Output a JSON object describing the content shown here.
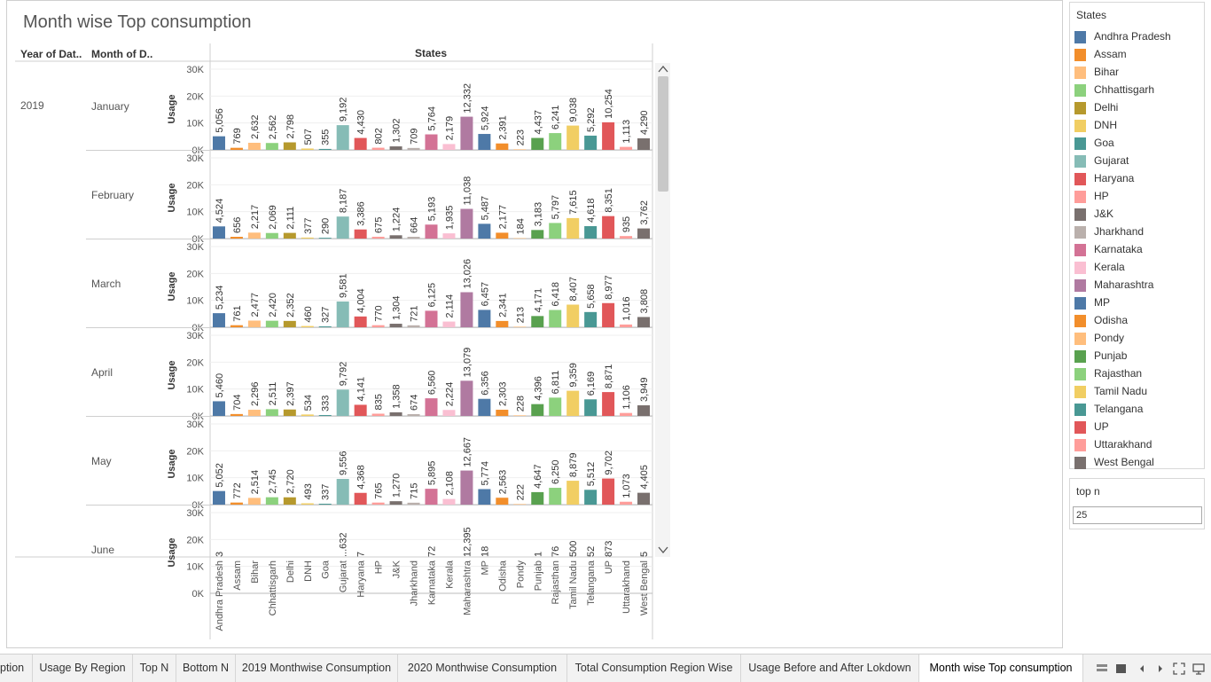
{
  "dashboard": {
    "title": "Month wise Top consumption"
  },
  "colors": {
    "axis_line": "#cfcfcf",
    "grid": "#eeeeee",
    "text": "#555555"
  },
  "header": {
    "year_col": "Year of Dat..",
    "month_col": "Month of D..",
    "states_col": "States",
    "year_value": "2019",
    "yaxis_label": "Usage"
  },
  "chart_data": {
    "type": "bar",
    "title": "Month wise Top consumption",
    "xlabel": "States",
    "ylabel": "Usage",
    "ylim": [
      0,
      30000
    ],
    "y_ticks": [
      "30K",
      "20K",
      "10K",
      "0K"
    ],
    "categories": [
      "Andhra Pradesh",
      "Assam",
      "Bihar",
      "Chhattisgarh",
      "Delhi",
      "DNH",
      "Goa",
      "Gujarat",
      "Haryana",
      "HP",
      "J&K",
      "Jharkhand",
      "Karnataka",
      "Kerala",
      "Maharashtra",
      "MP",
      "Odisha",
      "Pondy",
      "Punjab",
      "Rajasthan",
      "Tamil Nadu",
      "Telangana",
      "UP",
      "Uttarakhand",
      "West Bengal"
    ],
    "panels": [
      {
        "month": "January",
        "values": [
          5056,
          769,
          2632,
          2562,
          2798,
          507,
          355,
          9192,
          4430,
          802,
          1302,
          709,
          5764,
          2179,
          12332,
          5924,
          2391,
          223,
          4437,
          6241,
          9038,
          5292,
          10254,
          1113,
          4290
        ]
      },
      {
        "month": "February",
        "values": [
          4524,
          656,
          2217,
          2069,
          2111,
          377,
          290,
          8187,
          3386,
          675,
          1224,
          664,
          5193,
          1935,
          11038,
          5487,
          2177,
          184,
          3183,
          5797,
          7615,
          4618,
          8351,
          935,
          3762
        ]
      },
      {
        "month": "March",
        "values": [
          5234,
          761,
          2477,
          2420,
          2352,
          460,
          327,
          9581,
          4004,
          770,
          1304,
          721,
          6125,
          2114,
          13026,
          6457,
          2341,
          213,
          4171,
          6418,
          8407,
          5658,
          8977,
          1016,
          3808
        ]
      },
      {
        "month": "April",
        "values": [
          5460,
          704,
          2296,
          2511,
          2397,
          534,
          333,
          9792,
          4141,
          835,
          1358,
          674,
          6560,
          2224,
          13079,
          6356,
          2303,
          228,
          4396,
          6811,
          9359,
          6169,
          8871,
          1106,
          3949
        ]
      },
      {
        "month": "May",
        "values": [
          5052,
          772,
          2514,
          2745,
          2720,
          493,
          337,
          9556,
          4368,
          765,
          1270,
          715,
          5895,
          2108,
          12667,
          5774,
          2563,
          222,
          4647,
          6250,
          8879,
          5512,
          9702,
          1073,
          4405
        ]
      },
      {
        "month": "June",
        "values": []
      }
    ],
    "partial_labels_june": [
      "3",
      "",
      "",
      "",
      "",
      "",
      "",
      "...632",
      "7",
      "",
      "",
      "",
      "72",
      "",
      "12,395",
      "18",
      "",
      "",
      "1",
      "76",
      "500",
      "52",
      "873",
      "",
      "5"
    ],
    "palette": [
      "#4e79a7",
      "#f28e2b",
      "#ffbe7d",
      "#8cd17d",
      "#b6992d",
      "#f1ce63",
      "#499894",
      "#86bcb6",
      "#e15759",
      "#ff9d9a",
      "#79706e",
      "#bab0ac",
      "#d37295",
      "#fabfd2",
      "#b07aa1",
      "#4e79a7",
      "#f28e2b",
      "#ffbe7d",
      "#59a14f",
      "#8cd17d",
      "#f1ce63",
      "#499894",
      "#e15759",
      "#ff9d9a",
      "#79706e"
    ],
    "grid": true,
    "legend_position": "right"
  },
  "legend": {
    "title": "States",
    "items": [
      {
        "label": "Andhra Pradesh",
        "color": "#4e79a7"
      },
      {
        "label": "Assam",
        "color": "#f28e2b"
      },
      {
        "label": "Bihar",
        "color": "#ffbe7d"
      },
      {
        "label": "Chhattisgarh",
        "color": "#8cd17d"
      },
      {
        "label": "Delhi",
        "color": "#b6992d"
      },
      {
        "label": "DNH",
        "color": "#f1ce63"
      },
      {
        "label": "Goa",
        "color": "#499894"
      },
      {
        "label": "Gujarat",
        "color": "#86bcb6"
      },
      {
        "label": "Haryana",
        "color": "#e15759"
      },
      {
        "label": "HP",
        "color": "#ff9d9a"
      },
      {
        "label": "J&K",
        "color": "#79706e"
      },
      {
        "label": "Jharkhand",
        "color": "#bab0ac"
      },
      {
        "label": "Karnataka",
        "color": "#d37295"
      },
      {
        "label": "Kerala",
        "color": "#fabfd2"
      },
      {
        "label": "Maharashtra",
        "color": "#b07aa1"
      },
      {
        "label": "MP",
        "color": "#4e79a7"
      },
      {
        "label": "Odisha",
        "color": "#f28e2b"
      },
      {
        "label": "Pondy",
        "color": "#ffbe7d"
      },
      {
        "label": "Punjab",
        "color": "#59a14f"
      },
      {
        "label": "Rajasthan",
        "color": "#8cd17d"
      },
      {
        "label": "Tamil Nadu",
        "color": "#f1ce63"
      },
      {
        "label": "Telangana",
        "color": "#499894"
      },
      {
        "label": "UP",
        "color": "#e15759"
      },
      {
        "label": "Uttarakhand",
        "color": "#ff9d9a"
      },
      {
        "label": "West Bengal",
        "color": "#79706e"
      }
    ]
  },
  "topn": {
    "label": "top n",
    "value": "25"
  },
  "tabs": [
    {
      "label": "ption",
      "active": false
    },
    {
      "label": "Usage By Region",
      "active": false
    },
    {
      "label": "Top N",
      "active": false
    },
    {
      "label": "Bottom N",
      "active": false
    },
    {
      "label": "2019 Monthwise Consumption",
      "active": false
    },
    {
      "label": "2020 Monthwise Consumption",
      "active": false
    },
    {
      "label": "Total Consumption Region Wise",
      "active": false
    },
    {
      "label": "Usage Before and After Lokdown",
      "active": false
    },
    {
      "label": "Month wise Top consumption",
      "active": true
    }
  ],
  "toolbar_icons": [
    "grid-view-icon",
    "sheet-view-icon",
    "prev-arrow-icon",
    "next-arrow-icon",
    "fit-screen-icon",
    "presentation-icon"
  ]
}
